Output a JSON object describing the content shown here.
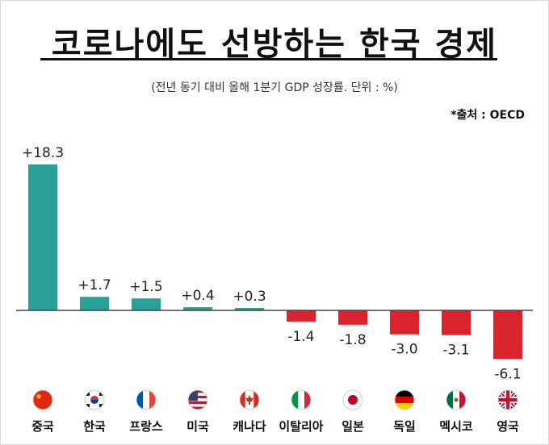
{
  "title": "코로나에도 선방하는 한국 경제",
  "subtitle": "(전년 동기 대비 올해 1분기 GDP 성장률.  단위 :  %)",
  "source": "*출처 :  OECD",
  "colors": {
    "positive": "#2aa198",
    "negative": "#d9232d",
    "axis": "#444444"
  },
  "chart_data": {
    "type": "bar",
    "categories": [
      "중국",
      "한국",
      "프랑스",
      "미국",
      "캐나다",
      "이탈리아",
      "일본",
      "독일",
      "멕시코",
      "영국"
    ],
    "labels": [
      "+18.3",
      "+1.7",
      "+1.5",
      "+0.4",
      "+0.3",
      "-1.4",
      "-1.8",
      "-3.0",
      "-3.1",
      "-6.1"
    ],
    "values": [
      18.3,
      1.7,
      1.5,
      0.4,
      0.3,
      -1.4,
      -1.8,
      -3.0,
      -3.1,
      -6.1
    ],
    "flags": [
      "china-flag-icon",
      "south-korea-flag-icon",
      "france-flag-icon",
      "usa-flag-icon",
      "canada-flag-icon",
      "italy-flag-icon",
      "japan-flag-icon",
      "germany-flag-icon",
      "mexico-flag-icon",
      "uk-flag-icon"
    ],
    "title": "코로나에도 선방하는 한국 경제",
    "grid": false
  }
}
